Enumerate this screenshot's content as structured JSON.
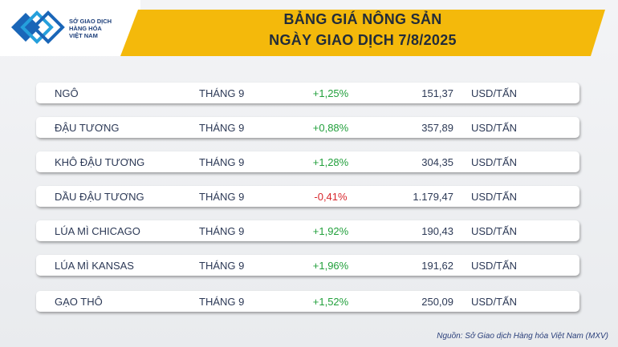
{
  "header": {
    "logo_text": [
      "SỞ GIAO DỊCH",
      "HÀNG HÓA",
      "VIỆT NAM"
    ],
    "title": "BẢNG GIÁ NÔNG SẢN",
    "subtitle": "NGÀY GIAO DỊCH 7/8/2025"
  },
  "table": {
    "rows": [
      [
        "NGÔ",
        "THÁNG 9",
        "+1,25%",
        "151,37",
        "USD/TẤN"
      ],
      [
        "ĐẬU TƯƠNG",
        "THÁNG 9",
        "+0,88%",
        "357,89",
        "USD/TẤN"
      ],
      [
        "KHÔ ĐẬU TƯƠNG",
        "THÁNG 9",
        "+1,28%",
        "304,35",
        "USD/TẤN"
      ],
      [
        "DẦU ĐẬU TƯƠNG",
        "THÁNG 9",
        "-0,41%",
        "1.179,47",
        "USD/TẤN"
      ],
      [
        "LÚA MÌ CHICAGO",
        "THÁNG 9",
        "+1,92%",
        "190,43",
        "USD/TẤN"
      ],
      [
        "LÚA MÌ KANSAS",
        "THÁNG 9",
        "+1,96%",
        "191,62",
        "USD/TẤN"
      ],
      [
        "GẠO THÔ",
        "THÁNG 9",
        "+1,52%",
        "250,09",
        "USD/TẤN"
      ]
    ],
    "colors": {
      "up": "#22a03c",
      "down": "#d8262c"
    }
  },
  "source": "Nguồn: Sở Giao dịch Hàng hóa Việt Nam (MXV)"
}
